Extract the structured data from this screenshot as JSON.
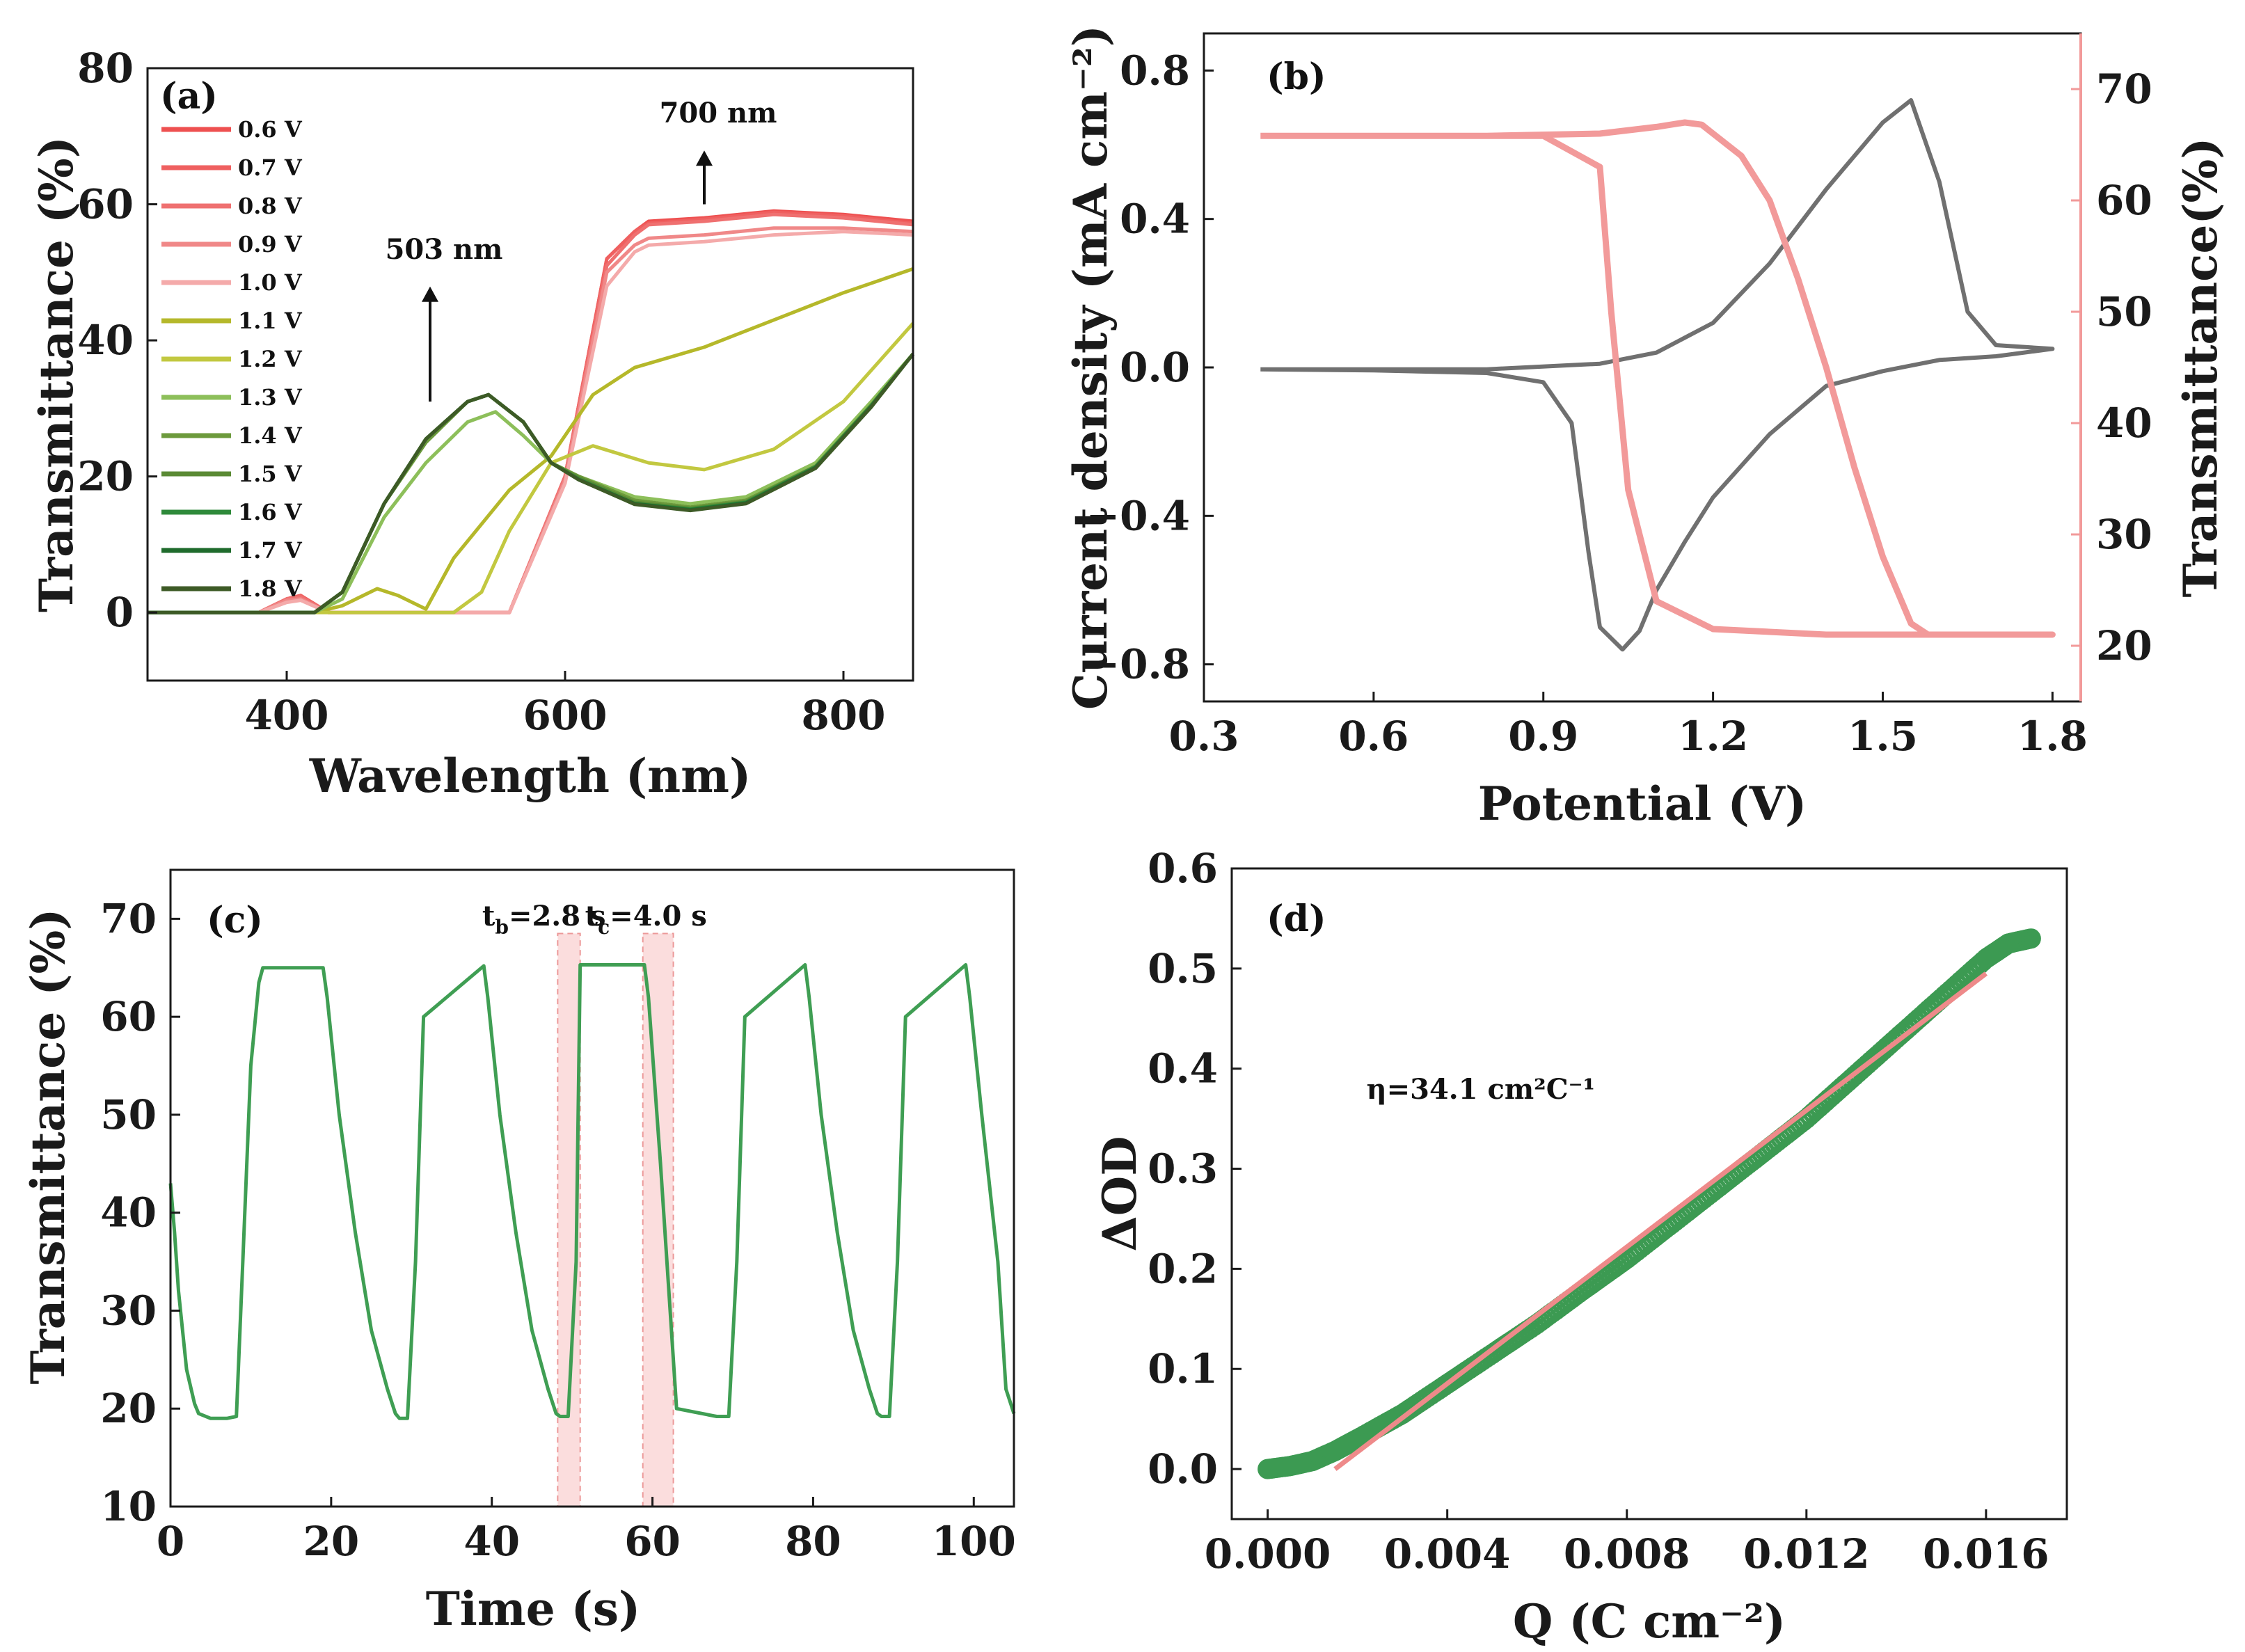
{
  "figure": {
    "colors": {
      "axis": "#1a1a1a",
      "gray_curve": "#707070",
      "pink_curve": "#f29a9a",
      "green_curve": "#3f9e53",
      "green_marker": "#3c9a52",
      "fit_line": "#ee8a8a",
      "annotation_pink": "#e98888",
      "band_fill": "#fbd8d8"
    }
  },
  "chart_data": [
    {
      "panel": "(a)",
      "type": "line",
      "xlabel": "Wavelength (nm)",
      "ylabel": "Transmittance (%)",
      "xlim": [
        300,
        850
      ],
      "ylim": [
        -10,
        80
      ],
      "xticks": [
        "400",
        "600",
        "800"
      ],
      "yticks": [
        "0",
        "20",
        "40",
        "60",
        "80"
      ],
      "legend_position": "top-left",
      "annotations": [
        {
          "text": "503 nm",
          "x": 503,
          "y": 52,
          "arrow": true
        },
        {
          "text": "700 nm",
          "x": 700,
          "y": 72,
          "arrow": true
        }
      ],
      "series": [
        {
          "name": "0.6 V",
          "color": "#ee5050",
          "x": [
            300,
            380,
            400,
            410,
            430,
            480,
            560,
            600,
            630,
            650,
            660,
            700,
            750,
            800,
            850
          ],
          "y": [
            0,
            0,
            2,
            2.5,
            0,
            0,
            0,
            20,
            52,
            56,
            57.5,
            58,
            59,
            58.5,
            57.5
          ]
        },
        {
          "name": "0.7 V",
          "color": "#ef6060",
          "x": [
            300,
            380,
            400,
            410,
            430,
            480,
            560,
            600,
            630,
            650,
            660,
            700,
            750,
            800,
            850
          ],
          "y": [
            0,
            0,
            2,
            2.5,
            0,
            0,
            0,
            20,
            52,
            56,
            57.2,
            57.8,
            58.8,
            58.3,
            57.2
          ]
        },
        {
          "name": "0.8 V",
          "color": "#ef7070",
          "x": [
            300,
            380,
            400,
            410,
            430,
            480,
            560,
            600,
            630,
            650,
            660,
            700,
            750,
            800,
            850
          ],
          "y": [
            0,
            0,
            2,
            2.3,
            0,
            0,
            0,
            20,
            51,
            55.5,
            57,
            57.5,
            58.5,
            58,
            57
          ]
        },
        {
          "name": "0.9 V",
          "color": "#f08888",
          "x": [
            300,
            380,
            400,
            410,
            430,
            480,
            560,
            600,
            630,
            650,
            660,
            700,
            750,
            800,
            850
          ],
          "y": [
            0,
            0,
            1.8,
            2,
            0,
            0,
            0,
            19.5,
            50,
            54,
            55,
            55.5,
            56.5,
            56.5,
            56
          ]
        },
        {
          "name": "1.0 V",
          "color": "#f4aaaa",
          "x": [
            300,
            380,
            400,
            410,
            430,
            480,
            560,
            600,
            630,
            650,
            660,
            700,
            750,
            800,
            850
          ],
          "y": [
            0,
            0,
            1.5,
            1.8,
            0,
            0,
            0,
            19,
            48,
            53,
            54,
            54.5,
            55.5,
            56,
            55.5
          ]
        },
        {
          "name": "1.1 V",
          "color": "#b5b82a",
          "x": [
            300,
            420,
            440,
            465,
            480,
            500,
            520,
            560,
            590,
            620,
            650,
            700,
            750,
            800,
            850
          ],
          "y": [
            0,
            0,
            1,
            3.5,
            2.5,
            0.5,
            8,
            18,
            23,
            32,
            36,
            39,
            43,
            47,
            50.5
          ]
        },
        {
          "name": "1.2 V",
          "color": "#c2c840",
          "x": [
            300,
            440,
            480,
            520,
            540,
            560,
            590,
            620,
            660,
            700,
            750,
            800,
            850
          ],
          "y": [
            0,
            0,
            0,
            0,
            3,
            12,
            22,
            24.5,
            22,
            21,
            24,
            31,
            42.5
          ]
        },
        {
          "name": "1.3 V",
          "color": "#8dbf5a",
          "x": [
            300,
            420,
            440,
            470,
            500,
            530,
            550,
            570,
            590,
            610,
            650,
            690,
            730,
            780,
            820,
            850
          ],
          "y": [
            0,
            0,
            2,
            14,
            22,
            28,
            29.5,
            26,
            22,
            20,
            17,
            16,
            17,
            22,
            31,
            38
          ]
        },
        {
          "name": "1.4 V",
          "color": "#6c9a3c",
          "x": [
            300,
            420,
            440,
            470,
            500,
            530,
            545,
            570,
            590,
            610,
            650,
            690,
            730,
            780,
            820,
            850
          ],
          "y": [
            0,
            0,
            3,
            16,
            25,
            31,
            32,
            28,
            22,
            20,
            16.5,
            15.5,
            16.5,
            21.5,
            30.5,
            38
          ]
        },
        {
          "name": "1.5 V",
          "color": "#5a8a34",
          "x": [
            300,
            420,
            440,
            470,
            500,
            530,
            545,
            570,
            590,
            610,
            650,
            690,
            730,
            780,
            820,
            850
          ],
          "y": [
            0,
            0,
            3,
            16,
            25.5,
            31,
            32,
            28,
            22,
            19.8,
            16.2,
            15.3,
            16.3,
            21.5,
            30.5,
            38
          ]
        },
        {
          "name": "1.6 V",
          "color": "#2e8a3a",
          "x": [
            300,
            420,
            440,
            470,
            500,
            530,
            545,
            570,
            590,
            610,
            650,
            690,
            730,
            780,
            820,
            850
          ],
          "y": [
            0,
            0,
            3,
            16,
            25.5,
            31,
            32,
            28,
            22,
            19.6,
            16,
            15.2,
            16.2,
            21.4,
            30.4,
            38
          ]
        },
        {
          "name": "1.7 V",
          "color": "#1f6b2c",
          "x": [
            300,
            420,
            440,
            470,
            500,
            530,
            545,
            570,
            590,
            610,
            650,
            690,
            730,
            780,
            820,
            850
          ],
          "y": [
            0,
            0,
            3,
            16,
            25.5,
            31,
            32,
            28,
            22,
            19.5,
            16,
            15.1,
            16.1,
            21.3,
            30.3,
            38
          ]
        },
        {
          "name": "1.8 V",
          "color": "#3d5a26",
          "x": [
            300,
            420,
            440,
            470,
            500,
            530,
            545,
            570,
            590,
            610,
            650,
            690,
            730,
            780,
            820,
            850
          ],
          "y": [
            0,
            0,
            3,
            16,
            25.5,
            31,
            32,
            28,
            22,
            19.5,
            15.9,
            15,
            16,
            21.2,
            30.2,
            38
          ]
        }
      ]
    },
    {
      "panel": "(b)",
      "type": "line",
      "xlabel": "Potential (V)",
      "ylabel": "Current density (mA cm⁻²)",
      "ylabel_right": "Transmittance(%)",
      "xlim": [
        0.3,
        1.85
      ],
      "ylim": [
        -0.9,
        0.9
      ],
      "ylim_right": [
        15,
        75
      ],
      "xticks": [
        "0.3",
        "0.6",
        "0.9",
        "1.2",
        "1.5",
        "1.8"
      ],
      "yticks": [
        "-0.8",
        "-0.4",
        "0.0",
        "0.4",
        "0.8"
      ],
      "yticks_right": [
        "20",
        "30",
        "40",
        "50",
        "60",
        "70"
      ],
      "series": [
        {
          "name": "",
          "axis": "left",
          "color": "#707070",
          "x": [
            0.4,
            0.8,
            1.0,
            1.1,
            1.15,
            1.2,
            1.3,
            1.4,
            1.5,
            1.55,
            1.6,
            1.65,
            1.7,
            1.8,
            1.7,
            1.6,
            1.5,
            1.4,
            1.3,
            1.2,
            1.15,
            1.1,
            1.07,
            1.04,
            1.0,
            0.98,
            0.95,
            0.9,
            0.8,
            0.6,
            0.4
          ],
          "y": [
            -0.005,
            -0.005,
            0.01,
            0.04,
            0.08,
            0.12,
            0.28,
            0.48,
            0.66,
            0.72,
            0.5,
            0.15,
            0.06,
            0.05,
            0.03,
            0.02,
            -0.01,
            -0.05,
            -0.18,
            -0.35,
            -0.47,
            -0.6,
            -0.71,
            -0.76,
            -0.7,
            -0.5,
            -0.15,
            -0.04,
            -0.015,
            -0.008,
            -0.005
          ]
        },
        {
          "name": "",
          "axis": "right",
          "color": "#f29a9a",
          "x": [
            0.4,
            0.8,
            1.0,
            1.1,
            1.15,
            1.18,
            1.2,
            1.25,
            1.3,
            1.35,
            1.4,
            1.45,
            1.5,
            1.55,
            1.58,
            1.6,
            1.8,
            1.6,
            1.4,
            1.2,
            1.1,
            1.05,
            1.02,
            1.0,
            0.9,
            0.6,
            0.4
          ],
          "y": [
            65.8,
            65.8,
            66,
            66.6,
            67,
            66.8,
            66,
            64,
            60,
            53,
            45,
            36,
            28,
            22,
            21,
            21,
            21,
            21,
            21,
            21.5,
            24,
            34,
            50,
            63,
            65.8,
            65.8,
            65.8
          ]
        }
      ]
    },
    {
      "panel": "(c)",
      "type": "line",
      "xlabel": "Time (s)",
      "ylabel": "Transmittance (%)",
      "xlim": [
        0,
        105
      ],
      "ylim": [
        10,
        75
      ],
      "xticks": [
        "0",
        "20",
        "40",
        "60",
        "80",
        "100"
      ],
      "yticks": [
        "10",
        "20",
        "30",
        "40",
        "50",
        "60",
        "70"
      ],
      "annotations": [
        {
          "text": "t",
          "sub": "b",
          "rest": "=2.8 s"
        },
        {
          "text": "t",
          "sub": "c",
          "rest": "=4.0 s"
        }
      ],
      "bands": [
        [
          48.2,
          51.0
        ],
        [
          58.8,
          62.6
        ]
      ],
      "series": [
        {
          "name": "",
          "color": "#3f9e53",
          "x": [
            0,
            0.5,
            1,
            2,
            3,
            3.5,
            5,
            7,
            8.2,
            9,
            10,
            11,
            11.5,
            19,
            19.5,
            21,
            23,
            25,
            27,
            28,
            28.5,
            29.5,
            30.5,
            31.5,
            39,
            39.5,
            41,
            43,
            45,
            47,
            48,
            48.5,
            49.5,
            50.5,
            51,
            59,
            59.5,
            61,
            62.6,
            63,
            68,
            69,
            69.5,
            70.5,
            71.5,
            79,
            79.5,
            81,
            83,
            85,
            87,
            88,
            88.5,
            89.5,
            90.5,
            91.5,
            99,
            99.5,
            101,
            103,
            104,
            105
          ],
          "y": [
            43,
            38,
            32,
            24,
            20.5,
            19.5,
            19,
            19,
            19.2,
            35,
            55,
            63.5,
            65,
            65,
            62,
            50,
            38,
            28,
            22,
            19.5,
            19,
            19,
            35,
            60,
            65.2,
            62,
            50,
            38,
            28,
            22,
            19.5,
            19.2,
            19.2,
            35,
            65.3,
            65.3,
            62,
            45,
            25,
            20,
            19.2,
            19.2,
            19.2,
            35,
            60,
            65.3,
            62,
            50,
            38,
            28,
            22,
            19.5,
            19.2,
            19.2,
            35,
            60,
            65.3,
            62,
            50,
            35,
            22,
            19.5
          ]
        }
      ]
    },
    {
      "panel": "(d)",
      "type": "scatter",
      "xlabel": "Q (C cm⁻²)",
      "ylabel": "ΔOD",
      "xlim": [
        -0.0008,
        0.0178
      ],
      "ylim": [
        -0.05,
        0.6
      ],
      "xticks": [
        "0.000",
        "0.004",
        "0.008",
        "0.012",
        "0.016"
      ],
      "yticks": [
        "0.0",
        "0.1",
        "0.2",
        "0.3",
        "0.4",
        "0.5",
        "0.6"
      ],
      "annotation": {
        "text": "η=34.1 cm²C⁻¹"
      },
      "fit": {
        "x": [
          0.0015,
          0.016
        ],
        "y": [
          0.0,
          0.495
        ]
      },
      "series": [
        {
          "name": "",
          "color": "#3c9a52",
          "x": [
            0,
            0.0005,
            0.001,
            0.0015,
            0.002,
            0.003,
            0.004,
            0.005,
            0.006,
            0.007,
            0.008,
            0.009,
            0.01,
            0.011,
            0.012,
            0.013,
            0.014,
            0.015,
            0.016,
            0.0165,
            0.017
          ],
          "y": [
            0,
            0.003,
            0.008,
            0.018,
            0.03,
            0.055,
            0.085,
            0.115,
            0.145,
            0.178,
            0.21,
            0.245,
            0.28,
            0.315,
            0.35,
            0.39,
            0.43,
            0.47,
            0.51,
            0.525,
            0.53
          ]
        }
      ]
    }
  ]
}
